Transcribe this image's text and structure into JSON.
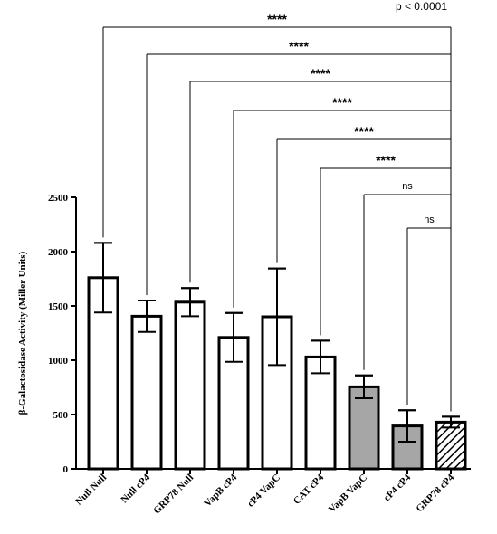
{
  "chart_data": {
    "type": "bar",
    "ylabel": "β-Galactosidase Activity (Miller Units)",
    "ylim": [
      0,
      2500
    ],
    "yticks": [
      0,
      500,
      1000,
      1500,
      2000,
      2500
    ],
    "grid": false,
    "categories": [
      "Null Null",
      "Null cP4",
      "GRP78 Null",
      "VapB cP4",
      "cP4 VapC",
      "CAT cP4",
      "VapB VapC",
      "cP4 cP4",
      "GRP78 cP4"
    ],
    "values": [
      1760,
      1405,
      1535,
      1210,
      1400,
      1030,
      755,
      395,
      430
    ],
    "errors": [
      320,
      145,
      130,
      225,
      445,
      150,
      105,
      145,
      50
    ],
    "fills": [
      "white",
      "white",
      "white",
      "white",
      "white",
      "white",
      "gray",
      "gray",
      "hatched"
    ],
    "colors": {
      "gray": "#a6a6a6",
      "hatch": "#000000",
      "outline": "#000000"
    },
    "p_value_text": "p < 0.0001",
    "comparisons": [
      {
        "from": "Null Null",
        "to": "GRP78 cP4",
        "label": "****"
      },
      {
        "from": "Null cP4",
        "to": "GRP78 cP4",
        "label": "****"
      },
      {
        "from": "GRP78 Null",
        "to": "GRP78 cP4",
        "label": "****"
      },
      {
        "from": "VapB cP4",
        "to": "GRP78 cP4",
        "label": "****"
      },
      {
        "from": "cP4 VapC",
        "to": "GRP78 cP4",
        "label": "****"
      },
      {
        "from": "CAT cP4",
        "to": "GRP78 cP4",
        "label": "****"
      },
      {
        "from": "VapB VapC",
        "to": "GRP78 cP4",
        "label": "ns"
      },
      {
        "from": "cP4 cP4",
        "to": "GRP78 cP4",
        "label": "ns"
      }
    ]
  }
}
